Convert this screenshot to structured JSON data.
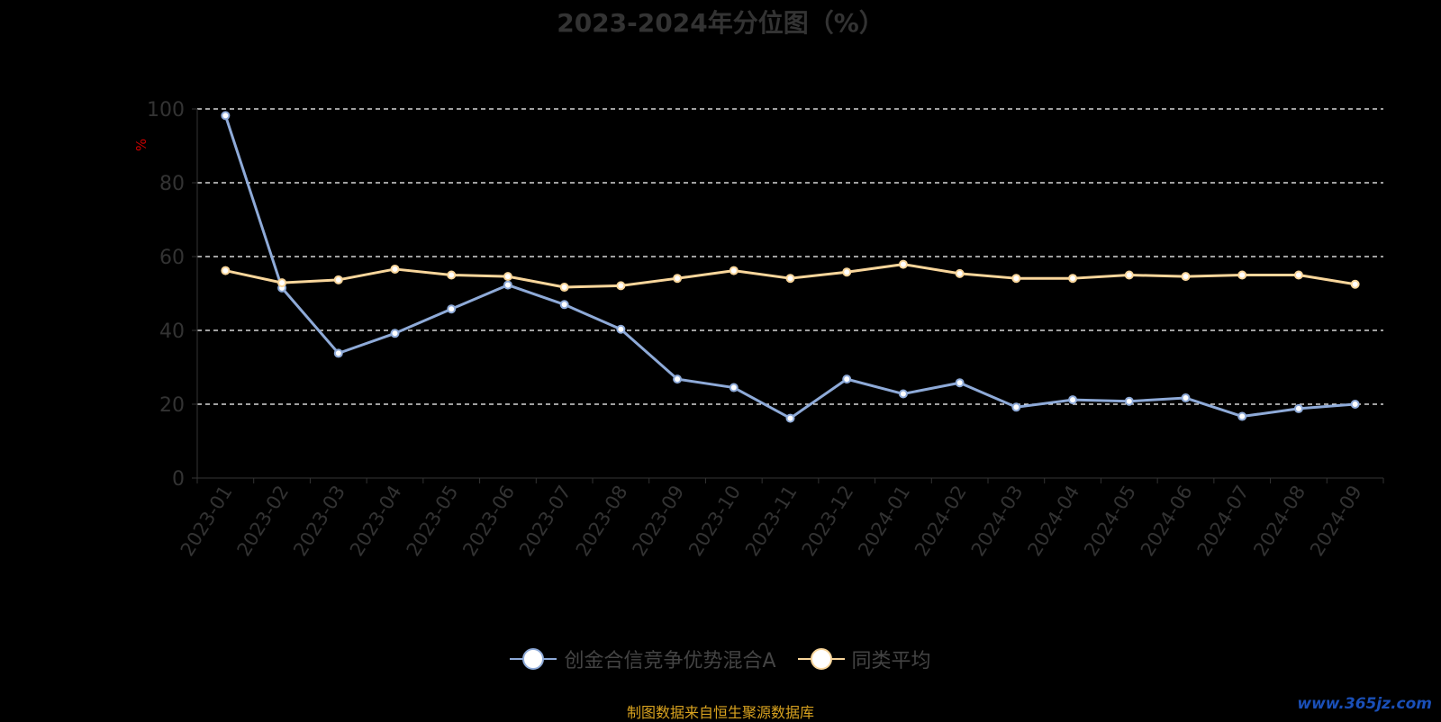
{
  "chart_data": {
    "type": "line",
    "title": "2023-2024年分位图（%）",
    "ylabel": "%",
    "ylim": [
      0,
      100
    ],
    "yticks": [
      0,
      20,
      40,
      60,
      80,
      100
    ],
    "grid": true,
    "legend_position": "bottom",
    "categories": [
      "2023-01",
      "2023-02",
      "2023-03",
      "2023-04",
      "2023-05",
      "2023-06",
      "2023-07",
      "2023-08",
      "2023-09",
      "2023-10",
      "2023-11",
      "2023-12",
      "2024-01",
      "2024-02",
      "2024-03",
      "2024-04",
      "2024-05",
      "2024-06",
      "2024-07",
      "2024-08",
      "2024-09"
    ],
    "series": [
      {
        "name": "创金合信竞争优势混合A",
        "color": "#8eaad8",
        "values": [
          98.2,
          51.5,
          33.8,
          39.2,
          45.8,
          52.3,
          47.0,
          40.3,
          26.8,
          24.5,
          16.2,
          26.8,
          22.8,
          25.8,
          19.2,
          21.2,
          20.8,
          21.7,
          16.7,
          18.8,
          20.0
        ]
      },
      {
        "name": "同类平均",
        "color": "#f9d69b",
        "values": [
          56.2,
          52.9,
          53.7,
          56.6,
          55.0,
          54.6,
          51.7,
          52.1,
          54.1,
          56.2,
          54.1,
          55.8,
          57.9,
          55.4,
          54.1,
          54.1,
          55.0,
          54.6,
          55.0,
          55.0,
          52.5
        ]
      }
    ]
  },
  "source_note": "制图数据来自恒生聚源数据库",
  "watermark": "www.365jz.com"
}
